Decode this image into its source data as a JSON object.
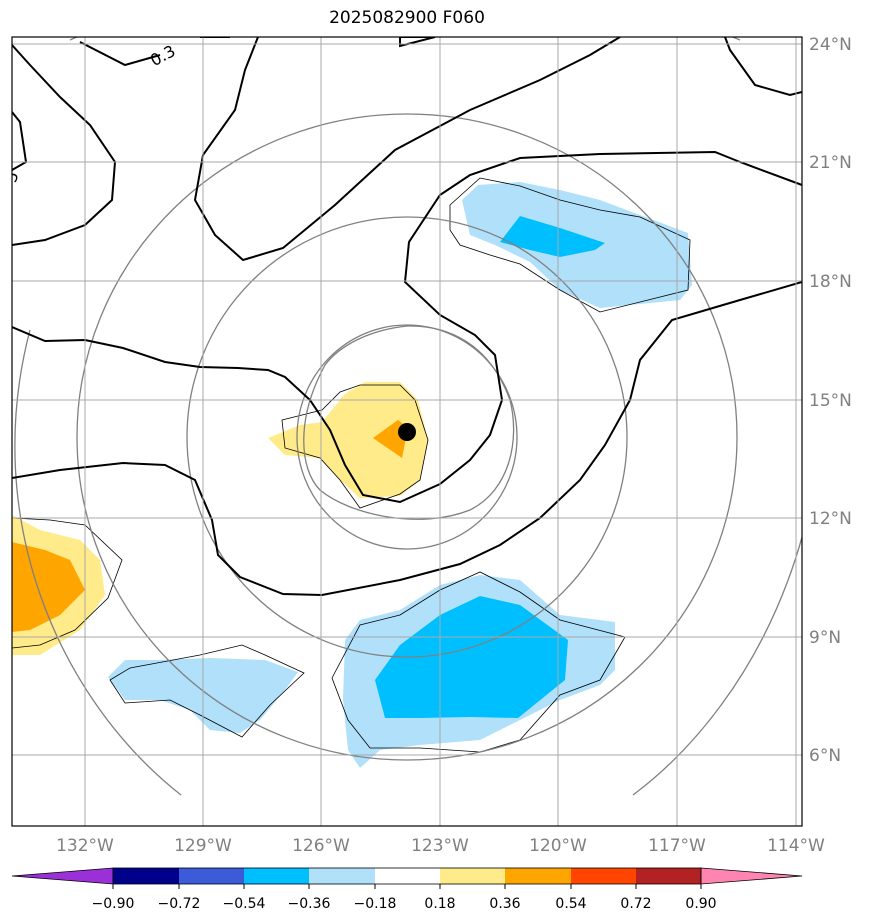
{
  "title": "2025082900 F060",
  "map": {
    "lon_labels": [
      "132°W",
      "129°W",
      "126°W",
      "123°W",
      "120°W",
      "117°W",
      "114°W"
    ],
    "lat_labels": [
      "24°N",
      "21°N",
      "18°N",
      "15°N",
      "12°N",
      "9°N",
      "6°N"
    ],
    "contour_labels": [
      "0.3",
      "5"
    ],
    "storm_center": {
      "lon": -123.8,
      "lat": 14.2
    }
  },
  "colorbar": {
    "colors": [
      "#9b30d9",
      "#00008b",
      "#3b5bd9",
      "#00bfff",
      "#b0e0fa",
      "#ffffff",
      "#ffeb8a",
      "#ffa500",
      "#ff4500",
      "#b22222",
      "#ff85b0"
    ],
    "ticks": [
      "−0.90",
      "−0.72",
      "−0.54",
      "−0.36",
      "−0.18",
      "0.18",
      "0.36",
      "0.54",
      "0.72",
      "0.90"
    ]
  }
}
